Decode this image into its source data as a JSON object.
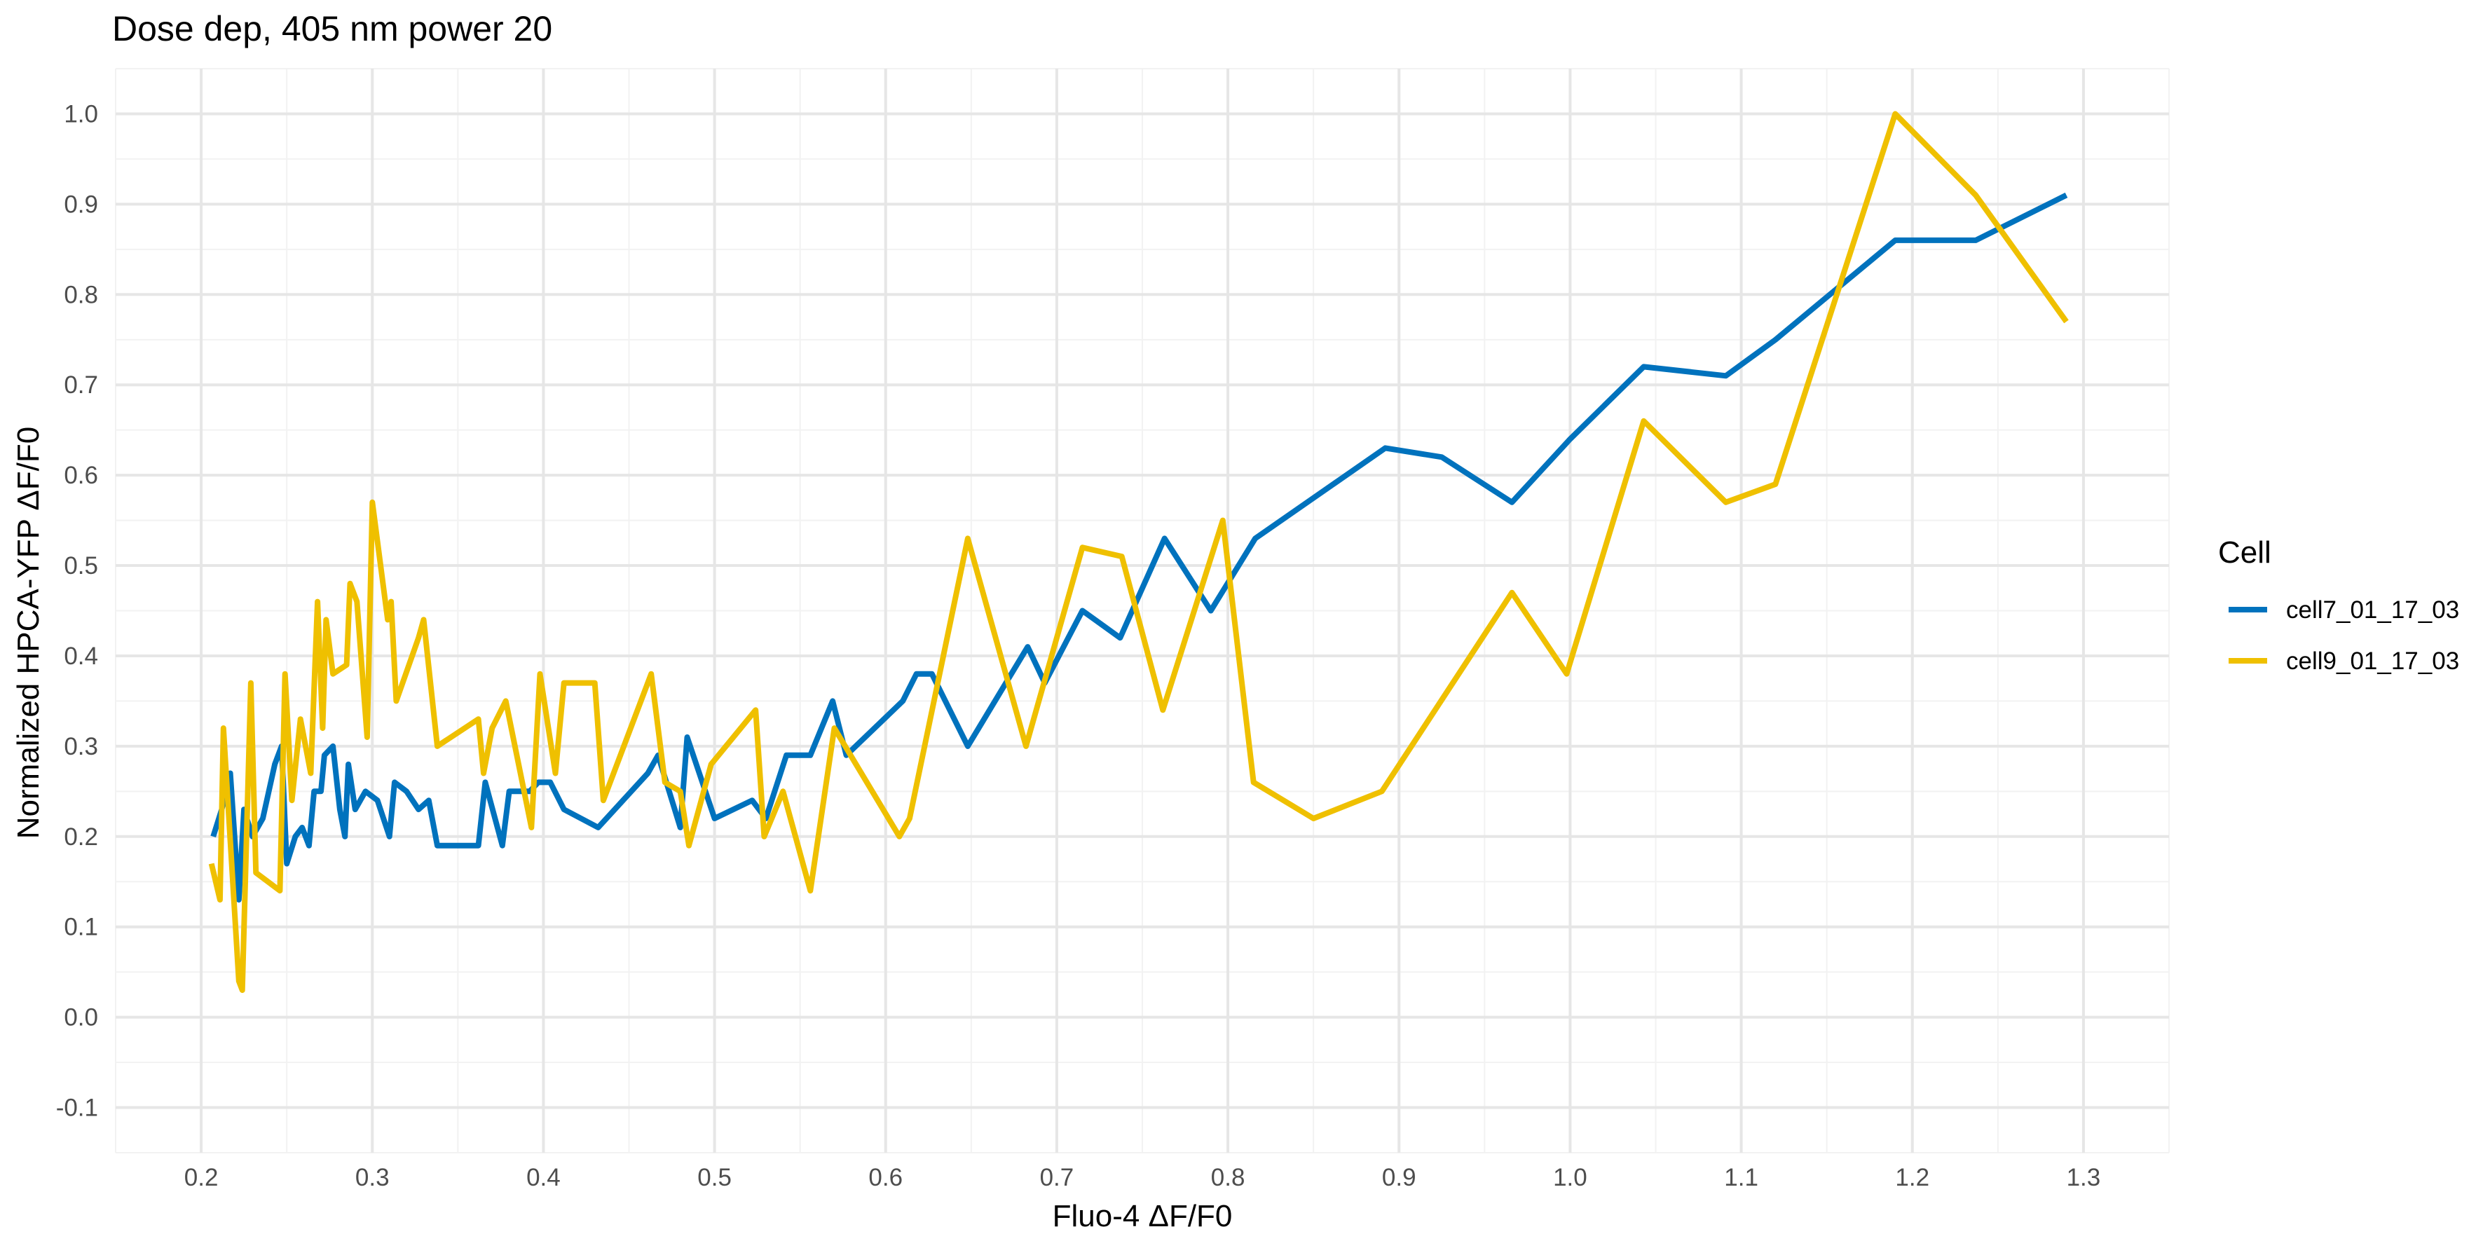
{
  "chart_data": {
    "type": "line",
    "title": "Dose dep, 405 nm power 20",
    "xlabel": "Fluo-4 ΔF/F0",
    "ylabel": "Normalized HPCA-YFP ΔF/F0",
    "xlim": [
      0.15,
      1.35
    ],
    "ylim": [
      -0.15,
      1.05
    ],
    "xticks": [
      0.2,
      0.3,
      0.4,
      0.5,
      0.6,
      0.7,
      0.8,
      0.9,
      1.0,
      1.1,
      1.2,
      1.3
    ],
    "xtick_labels": [
      "0.2",
      "0.3",
      "0.4",
      "0.5",
      "0.6",
      "0.7",
      "0.8",
      "0.9",
      "1.0",
      "1.1",
      "1.2",
      "1.3"
    ],
    "yticks": [
      -0.1,
      0.0,
      0.1,
      0.2,
      0.3,
      0.4,
      0.5,
      0.6,
      0.7,
      0.8,
      0.9,
      1.0
    ],
    "ytick_labels": [
      "-0.1",
      "0.0",
      "0.1",
      "0.2",
      "0.3",
      "0.4",
      "0.5",
      "0.6",
      "0.7",
      "0.8",
      "0.9",
      "1.0"
    ],
    "grid": true,
    "legend": {
      "title": "Cell",
      "position": "right"
    },
    "series": [
      {
        "name": "cell7_01_17_03",
        "color": "#0072BD",
        "points": [
          [
            0.207,
            0.2
          ],
          [
            0.212,
            0.23
          ],
          [
            0.217,
            0.27
          ],
          [
            0.222,
            0.13
          ],
          [
            0.225,
            0.23
          ],
          [
            0.23,
            0.2
          ],
          [
            0.236,
            0.22
          ],
          [
            0.243,
            0.28
          ],
          [
            0.247,
            0.3
          ],
          [
            0.25,
            0.17
          ],
          [
            0.255,
            0.2
          ],
          [
            0.259,
            0.21
          ],
          [
            0.263,
            0.19
          ],
          [
            0.266,
            0.25
          ],
          [
            0.27,
            0.25
          ],
          [
            0.272,
            0.29
          ],
          [
            0.277,
            0.3
          ],
          [
            0.281,
            0.23
          ],
          [
            0.284,
            0.2
          ],
          [
            0.286,
            0.28
          ],
          [
            0.29,
            0.23
          ],
          [
            0.296,
            0.25
          ],
          [
            0.303,
            0.24
          ],
          [
            0.31,
            0.2
          ],
          [
            0.313,
            0.26
          ],
          [
            0.32,
            0.25
          ],
          [
            0.327,
            0.23
          ],
          [
            0.333,
            0.24
          ],
          [
            0.338,
            0.19
          ],
          [
            0.362,
            0.19
          ],
          [
            0.366,
            0.26
          ],
          [
            0.376,
            0.19
          ],
          [
            0.38,
            0.25
          ],
          [
            0.392,
            0.25
          ],
          [
            0.397,
            0.26
          ],
          [
            0.404,
            0.26
          ],
          [
            0.412,
            0.23
          ],
          [
            0.432,
            0.21
          ],
          [
            0.461,
            0.27
          ],
          [
            0.467,
            0.29
          ],
          [
            0.48,
            0.21
          ],
          [
            0.484,
            0.31
          ],
          [
            0.5,
            0.22
          ],
          [
            0.522,
            0.24
          ],
          [
            0.53,
            0.22
          ],
          [
            0.542,
            0.29
          ],
          [
            0.556,
            0.29
          ],
          [
            0.569,
            0.35
          ],
          [
            0.577,
            0.29
          ],
          [
            0.61,
            0.35
          ],
          [
            0.618,
            0.38
          ],
          [
            0.627,
            0.38
          ],
          [
            0.648,
            0.3
          ],
          [
            0.683,
            0.41
          ],
          [
            0.693,
            0.37
          ],
          [
            0.715,
            0.45
          ],
          [
            0.737,
            0.42
          ],
          [
            0.763,
            0.53
          ],
          [
            0.79,
            0.45
          ],
          [
            0.816,
            0.53
          ],
          [
            0.892,
            0.63
          ],
          [
            0.925,
            0.62
          ],
          [
            0.966,
            0.57
          ],
          [
            1.0,
            0.64
          ],
          [
            1.043,
            0.72
          ],
          [
            1.091,
            0.71
          ],
          [
            1.12,
            0.75
          ],
          [
            1.19,
            0.86
          ],
          [
            1.237,
            0.86
          ],
          [
            1.29,
            0.91
          ]
        ]
      },
      {
        "name": "cell9_01_17_03",
        "color": "#EFC000",
        "points": [
          [
            0.206,
            0.17
          ],
          [
            0.211,
            0.13
          ],
          [
            0.213,
            0.32
          ],
          [
            0.222,
            0.04
          ],
          [
            0.224,
            0.03
          ],
          [
            0.229,
            0.37
          ],
          [
            0.232,
            0.16
          ],
          [
            0.246,
            0.14
          ],
          [
            0.249,
            0.38
          ],
          [
            0.253,
            0.24
          ],
          [
            0.258,
            0.33
          ],
          [
            0.264,
            0.27
          ],
          [
            0.268,
            0.46
          ],
          [
            0.271,
            0.32
          ],
          [
            0.273,
            0.44
          ],
          [
            0.277,
            0.38
          ],
          [
            0.285,
            0.39
          ],
          [
            0.287,
            0.48
          ],
          [
            0.291,
            0.46
          ],
          [
            0.297,
            0.31
          ],
          [
            0.3,
            0.57
          ],
          [
            0.309,
            0.44
          ],
          [
            0.311,
            0.46
          ],
          [
            0.314,
            0.35
          ],
          [
            0.327,
            0.42
          ],
          [
            0.33,
            0.44
          ],
          [
            0.338,
            0.3
          ],
          [
            0.362,
            0.33
          ],
          [
            0.365,
            0.27
          ],
          [
            0.37,
            0.32
          ],
          [
            0.378,
            0.35
          ],
          [
            0.393,
            0.21
          ],
          [
            0.398,
            0.38
          ],
          [
            0.407,
            0.27
          ],
          [
            0.412,
            0.37
          ],
          [
            0.43,
            0.37
          ],
          [
            0.435,
            0.24
          ],
          [
            0.463,
            0.38
          ],
          [
            0.471,
            0.26
          ],
          [
            0.48,
            0.25
          ],
          [
            0.485,
            0.19
          ],
          [
            0.498,
            0.28
          ],
          [
            0.524,
            0.34
          ],
          [
            0.529,
            0.2
          ],
          [
            0.54,
            0.25
          ],
          [
            0.556,
            0.14
          ],
          [
            0.57,
            0.32
          ],
          [
            0.608,
            0.2
          ],
          [
            0.614,
            0.22
          ],
          [
            0.648,
            0.53
          ],
          [
            0.682,
            0.3
          ],
          [
            0.715,
            0.52
          ],
          [
            0.738,
            0.51
          ],
          [
            0.762,
            0.34
          ],
          [
            0.797,
            0.55
          ],
          [
            0.815,
            0.26
          ],
          [
            0.85,
            0.22
          ],
          [
            0.89,
            0.25
          ],
          [
            0.966,
            0.47
          ],
          [
            0.998,
            0.38
          ],
          [
            1.043,
            0.66
          ],
          [
            1.091,
            0.57
          ],
          [
            1.12,
            0.59
          ],
          [
            1.19,
            1.0
          ],
          [
            1.237,
            0.91
          ],
          [
            1.29,
            0.77
          ]
        ]
      }
    ]
  }
}
